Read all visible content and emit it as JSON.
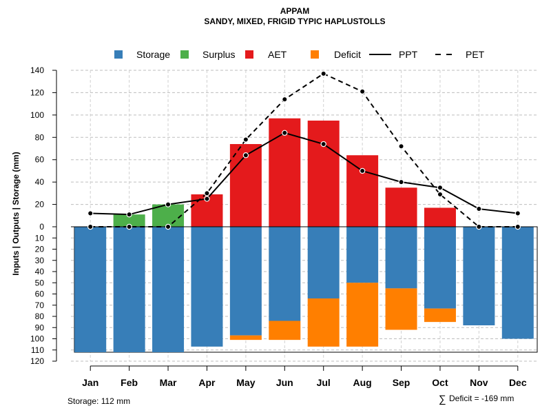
{
  "chart_data": {
    "type": "bar",
    "title": "APPAM",
    "subtitle": "SANDY, MIXED, FRIGID TYPIC HAPLUSTOLLS",
    "ylabel": "Inputs | Outputs | Storage    (mm)",
    "months": [
      "Jan",
      "Feb",
      "Mar",
      "Apr",
      "May",
      "Jun",
      "Jul",
      "Aug",
      "Sep",
      "Oct",
      "Nov",
      "Dec"
    ],
    "upper_axis": {
      "range": [
        0,
        140
      ],
      "ticks": [
        "0",
        "20",
        "40",
        "60",
        "80",
        "100",
        "120",
        "140"
      ]
    },
    "lower_axis": {
      "range": [
        0,
        120
      ],
      "ticks": [
        "10",
        "20",
        "30",
        "40",
        "50",
        "60",
        "70",
        "80",
        "90",
        "100",
        "110",
        "120"
      ]
    },
    "series": [
      {
        "name": "Storage",
        "color": "#377EB8",
        "values": [
          112,
          112,
          112,
          107,
          97,
          84,
          64,
          50,
          55,
          73,
          88,
          100
        ]
      },
      {
        "name": "Surplus",
        "color": "#4DAF4A",
        "values": [
          0,
          11,
          20,
          0,
          0,
          0,
          0,
          0,
          0,
          0,
          0,
          0
        ]
      },
      {
        "name": "AET",
        "color": "#E41A1C",
        "values": [
          0,
          0,
          0,
          29,
          74,
          97,
          95,
          64,
          35,
          17,
          0,
          0
        ]
      },
      {
        "name": "Deficit",
        "color": "#FF7F00",
        "values": [
          0,
          0,
          0,
          0,
          4,
          17,
          43,
          57,
          37,
          12,
          0,
          0
        ]
      },
      {
        "name": "PPT",
        "values": [
          12,
          11,
          20,
          25,
          64,
          84,
          74,
          50,
          40,
          35,
          16,
          12
        ]
      },
      {
        "name": "PET",
        "values": [
          0,
          0,
          0,
          30,
          78,
          114,
          137,
          121,
          72,
          29,
          0,
          0
        ]
      }
    ],
    "legend": [
      {
        "label": "Storage",
        "kind": "box",
        "color": "#377EB8"
      },
      {
        "label": "Surplus",
        "kind": "box",
        "color": "#4DAF4A"
      },
      {
        "label": "AET",
        "kind": "box",
        "color": "#E41A1C"
      },
      {
        "label": "Deficit",
        "kind": "box",
        "color": "#FF7F00"
      },
      {
        "label": "PPT",
        "kind": "solid"
      },
      {
        "label": "PET",
        "kind": "dashed"
      }
    ],
    "storage_capacity": 112
  },
  "footer": {
    "storage_label": "Storage: 112 mm",
    "deficit_label": "Deficit = -169 mm",
    "sum_symbol": "∑"
  }
}
